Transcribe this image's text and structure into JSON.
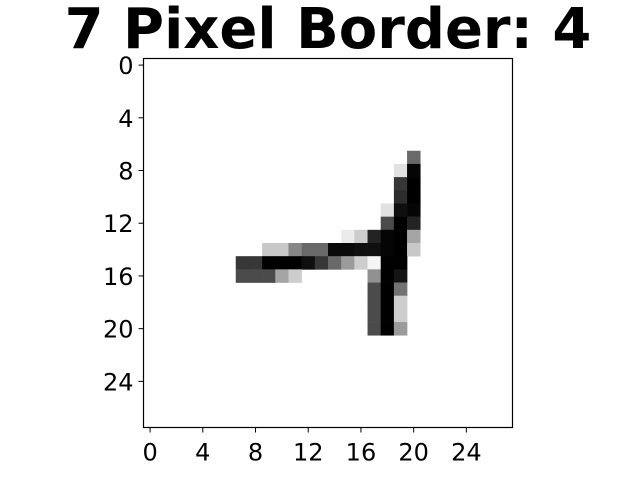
{
  "chart_data": {
    "type": "heatmap",
    "title": "7 Pixel Border: 4",
    "colormap": "gray_r",
    "value_range": [
      0,
      255
    ],
    "xlabel": "",
    "ylabel": "",
    "xlim": [
      -0.5,
      27.5
    ],
    "ylim": [
      27.5,
      -0.5
    ],
    "x_ticks": [
      0,
      4,
      8,
      12,
      16,
      20,
      24
    ],
    "y_ticks": [
      0,
      4,
      8,
      12,
      16,
      20,
      24
    ],
    "x_tick_labels": [
      "0",
      "4",
      "8",
      "12",
      "16",
      "20",
      "24"
    ],
    "y_tick_labels": [
      "0",
      "4",
      "8",
      "12",
      "16",
      "20",
      "24"
    ],
    "grid": false,
    "rows": 28,
    "cols": 28,
    "pixels": [
      {
        "row": 7,
        "col": 20,
        "value": 150
      },
      {
        "row": 8,
        "col": 19,
        "value": 30
      },
      {
        "row": 8,
        "col": 20,
        "value": 250
      },
      {
        "row": 9,
        "col": 19,
        "value": 200
      },
      {
        "row": 9,
        "col": 20,
        "value": 255
      },
      {
        "row": 10,
        "col": 19,
        "value": 210
      },
      {
        "row": 10,
        "col": 20,
        "value": 255
      },
      {
        "row": 11,
        "col": 18,
        "value": 30
      },
      {
        "row": 11,
        "col": 19,
        "value": 240
      },
      {
        "row": 11,
        "col": 20,
        "value": 250
      },
      {
        "row": 12,
        "col": 18,
        "value": 180
      },
      {
        "row": 12,
        "col": 19,
        "value": 255
      },
      {
        "row": 12,
        "col": 20,
        "value": 220
      },
      {
        "row": 13,
        "col": 15,
        "value": 20
      },
      {
        "row": 13,
        "col": 16,
        "value": 50
      },
      {
        "row": 13,
        "col": 17,
        "value": 220
      },
      {
        "row": 13,
        "col": 18,
        "value": 250
      },
      {
        "row": 13,
        "col": 19,
        "value": 255
      },
      {
        "row": 13,
        "col": 20,
        "value": 90
      },
      {
        "row": 14,
        "col": 9,
        "value": 55
      },
      {
        "row": 14,
        "col": 10,
        "value": 55
      },
      {
        "row": 14,
        "col": 11,
        "value": 120
      },
      {
        "row": 14,
        "col": 12,
        "value": 150
      },
      {
        "row": 14,
        "col": 13,
        "value": 150
      },
      {
        "row": 14,
        "col": 14,
        "value": 245
      },
      {
        "row": 14,
        "col": 15,
        "value": 245
      },
      {
        "row": 14,
        "col": 16,
        "value": 240
      },
      {
        "row": 14,
        "col": 17,
        "value": 240
      },
      {
        "row": 14,
        "col": 18,
        "value": 250
      },
      {
        "row": 14,
        "col": 19,
        "value": 255
      },
      {
        "row": 14,
        "col": 20,
        "value": 55
      },
      {
        "row": 15,
        "col": 7,
        "value": 200
      },
      {
        "row": 15,
        "col": 8,
        "value": 200
      },
      {
        "row": 15,
        "col": 9,
        "value": 255
      },
      {
        "row": 15,
        "col": 10,
        "value": 255
      },
      {
        "row": 15,
        "col": 11,
        "value": 255
      },
      {
        "row": 15,
        "col": 12,
        "value": 240
      },
      {
        "row": 15,
        "col": 13,
        "value": 200
      },
      {
        "row": 15,
        "col": 14,
        "value": 150
      },
      {
        "row": 15,
        "col": 15,
        "value": 100
      },
      {
        "row": 15,
        "col": 16,
        "value": 50
      },
      {
        "row": 15,
        "col": 17,
        "value": 10
      },
      {
        "row": 15,
        "col": 18,
        "value": 255
      },
      {
        "row": 15,
        "col": 19,
        "value": 255
      },
      {
        "row": 16,
        "col": 7,
        "value": 180
      },
      {
        "row": 16,
        "col": 8,
        "value": 180
      },
      {
        "row": 16,
        "col": 9,
        "value": 180
      },
      {
        "row": 16,
        "col": 10,
        "value": 90
      },
      {
        "row": 16,
        "col": 11,
        "value": 50
      },
      {
        "row": 16,
        "col": 17,
        "value": 110
      },
      {
        "row": 16,
        "col": 18,
        "value": 255
      },
      {
        "row": 16,
        "col": 19,
        "value": 235
      },
      {
        "row": 17,
        "col": 17,
        "value": 180
      },
      {
        "row": 17,
        "col": 18,
        "value": 255
      },
      {
        "row": 17,
        "col": 19,
        "value": 140
      },
      {
        "row": 18,
        "col": 17,
        "value": 180
      },
      {
        "row": 18,
        "col": 18,
        "value": 255
      },
      {
        "row": 18,
        "col": 19,
        "value": 50
      },
      {
        "row": 19,
        "col": 17,
        "value": 180
      },
      {
        "row": 19,
        "col": 18,
        "value": 255
      },
      {
        "row": 19,
        "col": 19,
        "value": 50
      },
      {
        "row": 20,
        "col": 17,
        "value": 180
      },
      {
        "row": 20,
        "col": 18,
        "value": 255
      },
      {
        "row": 20,
        "col": 19,
        "value": 100
      }
    ]
  }
}
